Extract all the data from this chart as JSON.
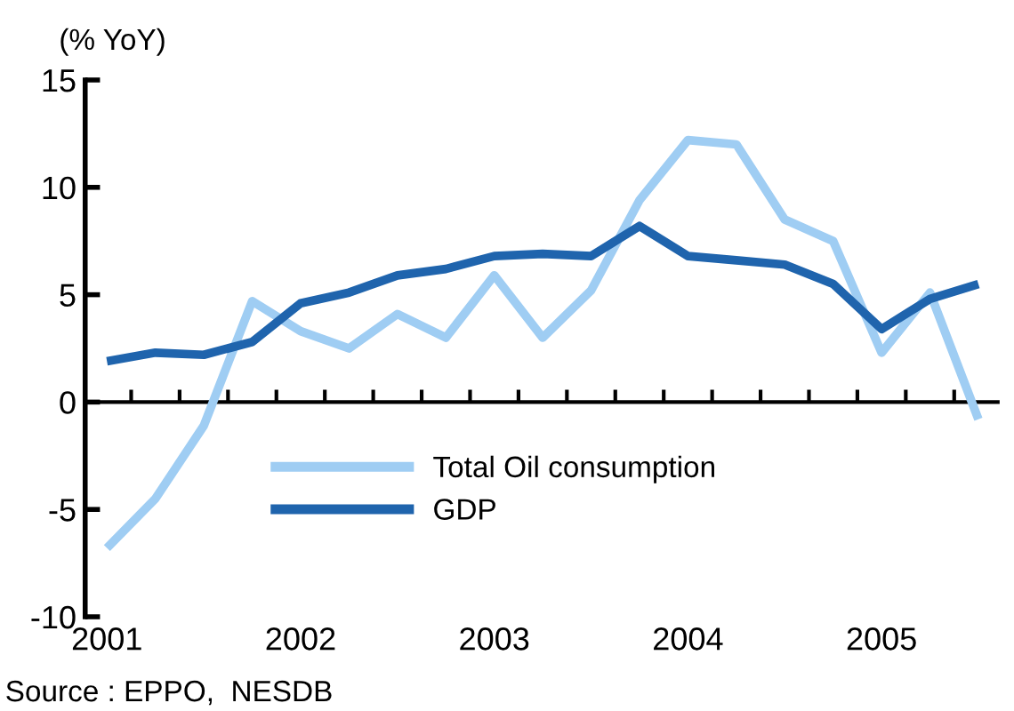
{
  "chart_data": {
    "type": "line",
    "ylabel": "(% YoY)",
    "categories": [
      "2001",
      null,
      null,
      null,
      "2002",
      null,
      null,
      null,
      "2003",
      null,
      null,
      null,
      "2004",
      null,
      null,
      null,
      "2005",
      null,
      null
    ],
    "series": [
      {
        "name": "Total Oil consumption",
        "color": "#9fcdf3",
        "values": [
          -6.8,
          -4.5,
          -1.1,
          4.7,
          3.3,
          2.5,
          4.1,
          3.0,
          5.9,
          3.0,
          5.2,
          9.4,
          12.2,
          12.0,
          8.5,
          7.5,
          2.3,
          5.1,
          -0.8
        ]
      },
      {
        "name": "GDP",
        "color": "#1f64ad",
        "values": [
          1.9,
          2.3,
          2.2,
          2.8,
          4.6,
          5.1,
          5.9,
          6.2,
          6.8,
          6.9,
          6.8,
          8.2,
          6.8,
          6.6,
          6.4,
          5.5,
          3.4,
          4.8,
          5.5
        ]
      }
    ],
    "ylim": [
      -10,
      15
    ],
    "yticks": [
      -10,
      -5,
      0,
      5,
      10,
      15
    ],
    "legend": "bottom",
    "marker": "none",
    "line_style": "solid",
    "annotations": [
      "Source : EPPO,  NESDB"
    ]
  }
}
